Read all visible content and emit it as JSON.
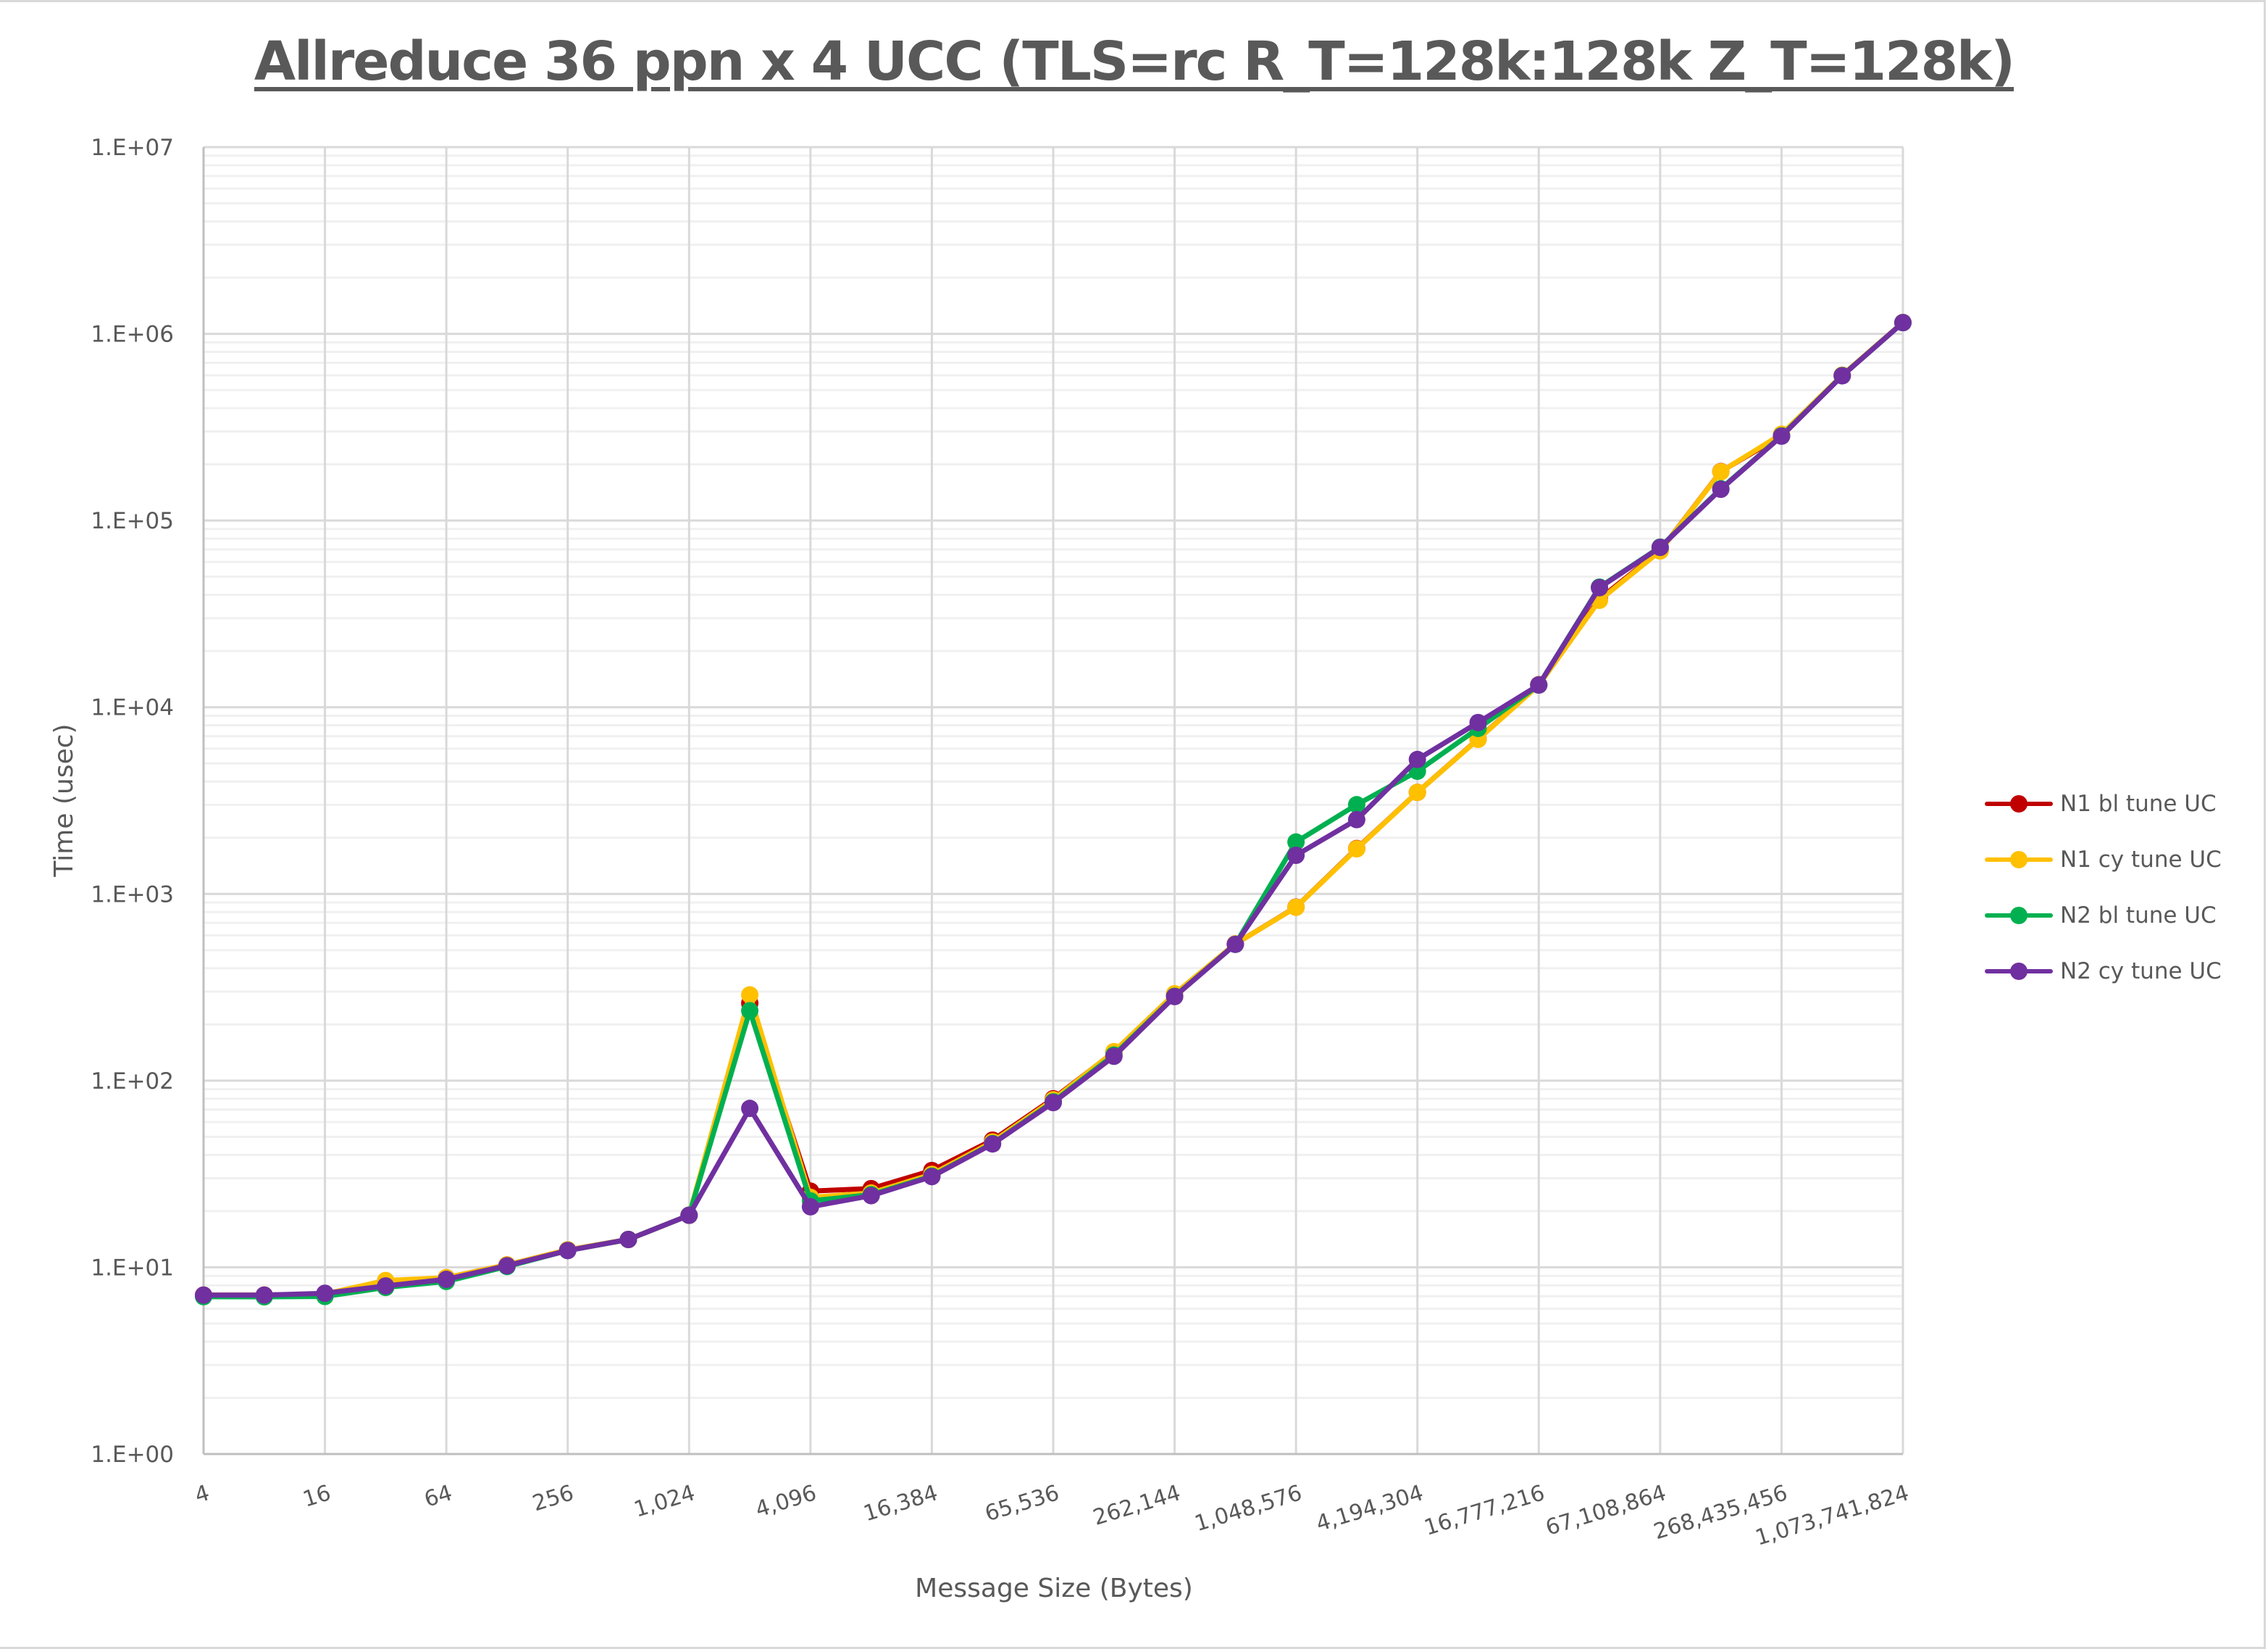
{
  "chart_data": {
    "type": "line",
    "title": "Allreduce 36 ppn x 4 UCC (TLS=rc R_T=128k:128k Z_T=128k)",
    "xlabel": "Message Size (Bytes)",
    "ylabel": "Time (usec)",
    "yscale": "log",
    "ylim": [
      1,
      10000000
    ],
    "xscale": "log2",
    "grid": true,
    "legend_position": "right",
    "y_tick_labels": [
      "1.E+00",
      "1.E+01",
      "1.E+02",
      "1.E+03",
      "1.E+04",
      "1.E+05",
      "1.E+06",
      "1.E+07"
    ],
    "x_tick_labels": [
      "4",
      "16",
      "64",
      "256",
      "1,024",
      "4,096",
      "16,384",
      "65,536",
      "262,144",
      "1,048,576",
      "4,194,304",
      "16,777,216",
      "67,108,864",
      "268,435,456",
      "1,073,741,824"
    ],
    "x": [
      4,
      8,
      16,
      32,
      64,
      128,
      256,
      512,
      1024,
      2048,
      4096,
      8192,
      16384,
      32768,
      65536,
      131072,
      262144,
      524288,
      1048576,
      2097152,
      4194304,
      8388608,
      16777216,
      33554432,
      67108864,
      134217728,
      268435456,
      536870912,
      1073741824
    ],
    "series": [
      {
        "name": "N1 bl tune UC",
        "color": "#c00000",
        "values": [
          7.1,
          7.1,
          7.2,
          8.3,
          8.8,
          10.3,
          12.4,
          14.1,
          19.0,
          260,
          25.6,
          26.4,
          33.0,
          48,
          80,
          142,
          290,
          540,
          850,
          1750,
          3500,
          6750,
          13200,
          38000,
          69000,
          183000,
          285000,
          600000,
          1150000
        ]
      },
      {
        "name": "N1 cy tune UC",
        "color": "#ffc000",
        "values": [
          7.1,
          7.1,
          7.2,
          8.5,
          8.8,
          10.3,
          12.4,
          14.1,
          19.0,
          288,
          23.7,
          25.0,
          31.5,
          47,
          79,
          143,
          292,
          540,
          848,
          1743,
          3500,
          6730,
          13150,
          37400,
          68700,
          182500,
          290000,
          600000,
          1150000
        ]
      },
      {
        "name": "N2 bl tune UC",
        "color": "#00b050",
        "values": [
          6.96,
          6.95,
          6.98,
          7.8,
          8.4,
          10.1,
          12.3,
          14.1,
          19.0,
          237,
          22.7,
          24.5,
          30.8,
          46,
          77,
          137,
          283,
          537,
          1897,
          3006,
          4540,
          7700,
          13150,
          44000,
          72000,
          148000,
          284000,
          597000,
          1148000
        ]
      },
      {
        "name": "N2 cy tune UC",
        "color": "#7030a0",
        "values": [
          7.1,
          7.1,
          7.26,
          7.95,
          8.62,
          10.2,
          12.3,
          14.1,
          19.0,
          71,
          21.1,
          24.2,
          30.6,
          45.8,
          76.3,
          135,
          282,
          537,
          1610,
          2500,
          5250,
          8280,
          13150,
          43700,
          71800,
          147000,
          283000,
          596000,
          1148000
        ]
      }
    ]
  },
  "legend": {
    "items": [
      {
        "label": "N1 bl tune UC",
        "color": "#c00000"
      },
      {
        "label": "N1 cy tune UC",
        "color": "#ffc000"
      },
      {
        "label": "N2 bl tune UC",
        "color": "#00b050"
      },
      {
        "label": "N2 cy tune UC",
        "color": "#7030a0"
      }
    ]
  }
}
